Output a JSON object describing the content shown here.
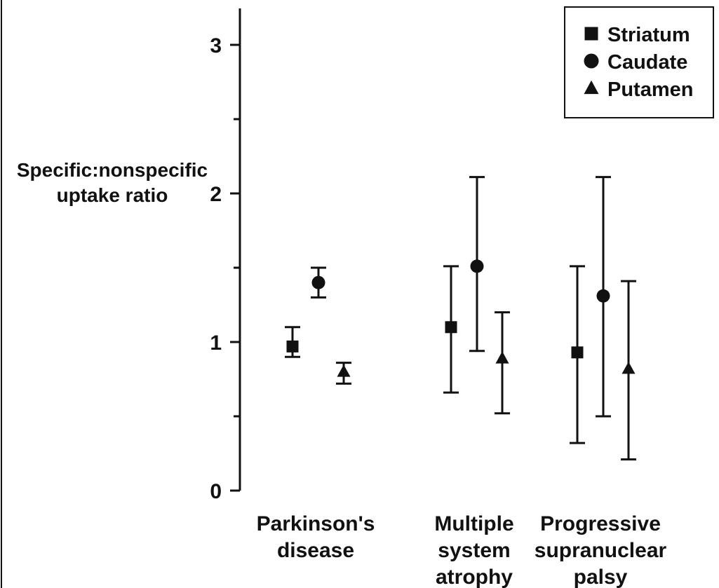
{
  "chart_data": {
    "type": "scatter",
    "ylabel_lines": [
      "Specific:nonspecific",
      "uptake ratio"
    ],
    "ylim": [
      0,
      3.25
    ],
    "yticks_major": [
      0,
      1,
      2,
      3
    ],
    "yticks_minor": [
      0.5,
      1.5,
      2.5
    ],
    "categories": [
      {
        "lines": [
          "Parkinson's",
          "disease"
        ]
      },
      {
        "lines": [
          "Multiple",
          "system",
          "atrophy"
        ]
      },
      {
        "lines": [
          "Progressive",
          "supranuclear",
          "palsy"
        ]
      }
    ],
    "legend_position": "top-right",
    "grid": false,
    "series": [
      {
        "name": "Striatum",
        "marker": "square",
        "points": [
          {
            "y": 0.97,
            "low": 0.9,
            "high": 1.1
          },
          {
            "y": 1.1,
            "low": 0.66,
            "high": 1.51
          },
          {
            "y": 0.93,
            "low": 0.32,
            "high": 1.51
          }
        ]
      },
      {
        "name": "Caudate",
        "marker": "circle",
        "points": [
          {
            "y": 1.4,
            "low": 1.3,
            "high": 1.5
          },
          {
            "y": 1.51,
            "low": 0.94,
            "high": 2.11
          },
          {
            "y": 1.31,
            "low": 0.5,
            "high": 2.11
          }
        ]
      },
      {
        "name": "Putamen",
        "marker": "triangle",
        "points": [
          {
            "y": 0.8,
            "low": 0.72,
            "high": 0.86
          },
          {
            "y": 0.89,
            "low": 0.52,
            "high": 1.2
          },
          {
            "y": 0.82,
            "low": 0.21,
            "high": 1.41
          }
        ]
      }
    ],
    "colors": {
      "ink": "#111111",
      "background": "#ffffff"
    }
  }
}
